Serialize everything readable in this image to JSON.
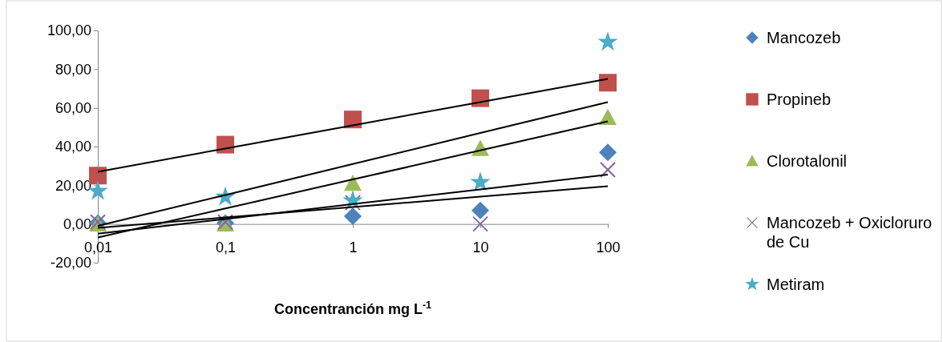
{
  "chart_data": {
    "type": "scatter",
    "xlabel": "Concentranción mg L$^{-1}$",
    "log": "x",
    "xlim": [
      0.01,
      100
    ],
    "ylim": [
      -20,
      100
    ],
    "xticks": [
      {
        "value": 0.01,
        "label": "0,01"
      },
      {
        "value": 0.1,
        "label": "0,1"
      },
      1,
      10,
      100
    ],
    "yticks": [
      {
        "value": -20,
        "label": "-20,00"
      },
      {
        "value": 0,
        "label": "0,00"
      },
      {
        "value": 20,
        "label": "20,00"
      },
      {
        "value": 40,
        "label": "40,00"
      },
      {
        "value": 60,
        "label": "60,00"
      },
      {
        "value": 80,
        "label": "80,00"
      },
      {
        "value": 100,
        "label": "100,00"
      }
    ],
    "grid": false,
    "legend": "right",
    "x": [
      0.01,
      0.1,
      1,
      10,
      100
    ],
    "series": [
      {
        "name": "Mancozeb",
        "color": "#4f81bd",
        "marker": "diamond",
        "values": [
          0.5,
          0.5,
          4,
          7,
          37
        ]
      },
      {
        "name": "Propineb",
        "color": "#c0504d",
        "marker": "square",
        "values": [
          25,
          41,
          54,
          65,
          73
        ]
      },
      {
        "name": "Clorotalonil",
        "color": "#9bbb59",
        "marker": "triangle",
        "values": [
          0,
          0,
          21,
          39,
          55
        ]
      },
      {
        "name": "Mancozeb + Oxicloruro de Cu",
        "color": "#8064a2",
        "marker": "cross",
        "values": [
          1,
          1,
          11,
          0,
          28
        ]
      },
      {
        "name": "Metiram",
        "color": "#4bacc6",
        "marker": "star",
        "values": [
          17,
          14,
          12,
          21.5,
          94
        ]
      },
      {
        "type": "line",
        "color": "#000000",
        "marker": "none",
        "values": [
          -2,
          3.4,
          8.8,
          14.1,
          19.5
        ]
      },
      {
        "type": "line",
        "color": "#000000",
        "marker": "none",
        "values": [
          27,
          39,
          51,
          63,
          75
        ]
      },
      {
        "type": "line",
        "color": "#000000",
        "marker": "none",
        "values": [
          -7,
          8,
          23,
          38,
          53
        ]
      },
      {
        "type": "line",
        "color": "#000000",
        "marker": "none",
        "values": [
          -5,
          2.6,
          10.3,
          17.9,
          25.5
        ]
      },
      {
        "type": "line",
        "color": "#000000",
        "marker": "none",
        "values": [
          -1,
          15,
          31,
          47,
          63
        ]
      }
    ]
  }
}
